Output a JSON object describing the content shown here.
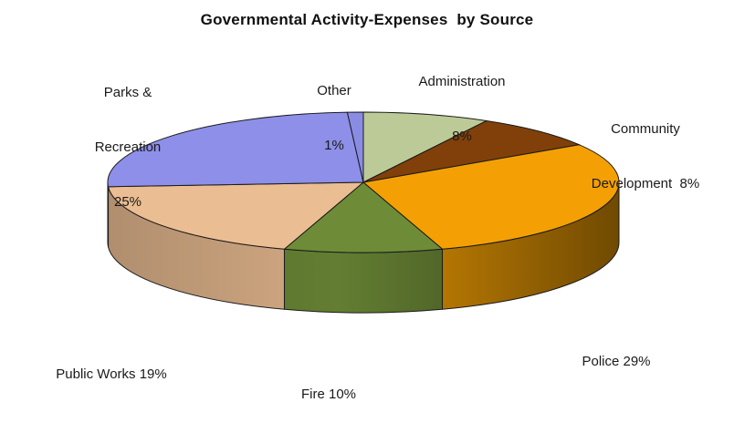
{
  "chart_data": {
    "type": "pie",
    "is_3d": true,
    "title": "Governmental Activity-Expenses  by Source",
    "start_angle_deg": 0,
    "direction": "clockwise",
    "legend_position": "none",
    "data_labels": "category name and percentage",
    "background": "#FFFFFF",
    "outline_color": "#1A1A1A",
    "slices": [
      {
        "name": "Administration",
        "value_pct": 8,
        "color": "#BCCA98",
        "label_lines": [
          "Administration",
          "8%"
        ]
      },
      {
        "name": "Community Development",
        "value_pct": 8,
        "color": "#81400A",
        "label_lines": [
          "Community",
          "Development  8%"
        ]
      },
      {
        "name": "Police",
        "value_pct": 29,
        "color": "#F4A004",
        "label_lines": [
          "Police 29%"
        ]
      },
      {
        "name": "Fire",
        "value_pct": 10,
        "color": "#6E8C38",
        "label_lines": [
          "Fire 10%"
        ]
      },
      {
        "name": "Public Works",
        "value_pct": 19,
        "color": "#EBBD92",
        "label_lines": [
          "Public Works 19%"
        ]
      },
      {
        "name": "Parks & Recreation",
        "value_pct": 25,
        "color": "#8D8FE8",
        "label_lines": [
          "Parks &",
          "Recreation",
          "25%"
        ]
      },
      {
        "name": "Other",
        "value_pct": 1,
        "color": "#8A8CE4",
        "label_lines": [
          "Other",
          "1%"
        ]
      }
    ]
  }
}
